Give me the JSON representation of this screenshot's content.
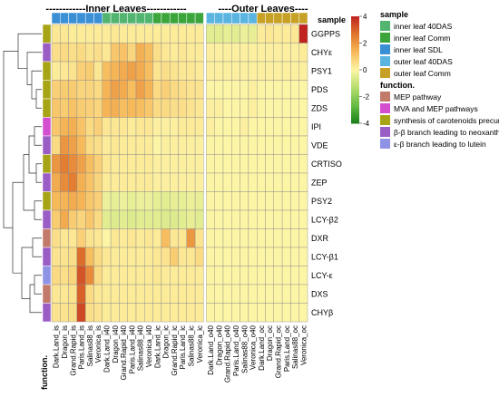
{
  "chart_data": {
    "type": "heatmap",
    "group_labels": [
      "------------Inner Leaves------------",
      "----Outer Leaves----"
    ],
    "samples": [
      "Dark.Land_is",
      "Dragon_is",
      "Grand.Rapid_is",
      "Paris.Land_is",
      "Salinas88_is",
      "Veronica_is",
      "Dark.Land_i40",
      "Dragon_i40",
      "Grand.Rapid_i40",
      "Paris.Land_i40",
      "Salinas88_i40",
      "Veronica_i40",
      "Dark.Land_ic",
      "Dragon_ic",
      "Grand.Rapid_ic",
      "Paris.Land_ic",
      "Salinas88_ic",
      "Veronica_ic",
      "Dark.Land_o40",
      "Dragon_o40",
      "Grand.Rapid_o40",
      "Paris.Land_o40",
      "Salinas88_o40",
      "Veronica_o40",
      "Dark.Land_oc",
      "Dragon_oc",
      "Grand.Rapid_oc",
      "Paris.Land_oc",
      "Salinas88_oc",
      "Veronica_oc"
    ],
    "sample_annotation": [
      "SDL",
      "SDL",
      "SDL",
      "SDL",
      "SDL",
      "SDL",
      "40DAS",
      "40DAS",
      "40DAS",
      "40DAS",
      "40DAS",
      "40DAS",
      "Comm",
      "Comm",
      "Comm",
      "Comm",
      "Comm",
      "Comm",
      "o40DAS",
      "o40DAS",
      "o40DAS",
      "o40DAS",
      "o40DAS",
      "o40DAS",
      "oComm",
      "oComm",
      "oComm",
      "oComm",
      "oComm",
      "oComm"
    ],
    "genes": [
      "GGPPS",
      "CHYε",
      "PSY1",
      "PDS",
      "ZDS",
      "IPI",
      "VDE",
      "CRTISO",
      "ZEP",
      "PSY2",
      "LCY-β2",
      "DXR",
      "LCY-β1",
      "LCY-ε",
      "DXS",
      "CHYβ"
    ],
    "gene_function": [
      "carot",
      "bb",
      "carot",
      "carot",
      "carot",
      "mva",
      "bb",
      "carot",
      "bb",
      "carot",
      "bb",
      "mep",
      "bb",
      "eb",
      "mep",
      "bb"
    ],
    "values": [
      [
        0.3,
        0.3,
        0.2,
        0.2,
        0.2,
        0.2,
        0.2,
        0.3,
        0.2,
        0.2,
        0.2,
        0.2,
        0.2,
        0.2,
        0.2,
        0.2,
        0.2,
        0.2,
        -0.5,
        -0.5,
        -0.4,
        -0.5,
        -0.3,
        -0.4,
        0.2,
        0.3,
        0.2,
        0.2,
        0.3,
        4.0
      ],
      [
        0.5,
        0.6,
        0.5,
        0.6,
        0.4,
        0.5,
        0.3,
        1.0,
        1.1,
        0.7,
        1.5,
        1.2,
        0.5,
        0.3,
        0.2,
        0.3,
        0.2,
        0.2,
        0.1,
        0.1,
        0.1,
        0.1,
        0.1,
        0.1,
        0.1,
        0.1,
        0.1,
        0.1,
        0.1,
        0.2
      ],
      [
        0.2,
        0.3,
        0.4,
        0.8,
        0.9,
        0.3,
        1.2,
        1.4,
        1.6,
        1.8,
        1.6,
        1.2,
        0.4,
        0.5,
        0.4,
        0.3,
        0.3,
        0.2,
        0.1,
        0.1,
        0.1,
        0.1,
        0.1,
        0.1,
        0.1,
        0.1,
        0.1,
        0.1,
        0.1,
        0.1
      ],
      [
        0.8,
        0.9,
        0.9,
        0.7,
        0.7,
        0.6,
        1.4,
        1.8,
        1.6,
        1.2,
        1.8,
        1.4,
        0.6,
        0.8,
        0.6,
        0.5,
        0.4,
        0.4,
        0.0,
        0.0,
        0.0,
        0.0,
        0.0,
        0.1,
        0.0,
        0.0,
        0.0,
        0.0,
        0.0,
        0.0
      ],
      [
        1.0,
        0.9,
        1.1,
        0.9,
        0.8,
        0.7,
        1.4,
        1.5,
        1.2,
        1.3,
        1.2,
        1.0,
        0.6,
        0.6,
        0.5,
        0.5,
        0.4,
        0.3,
        0.1,
        0.1,
        0.0,
        0.0,
        0.0,
        0.1,
        0.0,
        0.0,
        0.0,
        0.0,
        0.0,
        0.0
      ],
      [
        1.0,
        1.4,
        1.5,
        1.1,
        0.6,
        0.8,
        0.3,
        0.3,
        0.3,
        0.2,
        0.3,
        0.3,
        0.1,
        0.1,
        0.1,
        0.2,
        0.2,
        0.2,
        0.1,
        0.0,
        0.0,
        0.0,
        0.1,
        0.0,
        0.0,
        0.0,
        0.0,
        0.0,
        0.0,
        0.0
      ],
      [
        0.6,
        2.0,
        1.8,
        1.3,
        0.6,
        0.5,
        0.2,
        0.3,
        0.2,
        0.2,
        0.2,
        0.2,
        0.0,
        0.1,
        0.1,
        0.1,
        0.1,
        0.1,
        0.0,
        0.0,
        0.0,
        0.0,
        0.0,
        0.0,
        0.0,
        0.0,
        0.0,
        0.0,
        0.0,
        0.0
      ],
      [
        2.0,
        2.5,
        2.2,
        1.8,
        1.2,
        0.8,
        0.3,
        0.2,
        0.2,
        0.2,
        0.2,
        0.2,
        0.1,
        0.1,
        0.1,
        0.1,
        0.1,
        0.1,
        0.0,
        0.0,
        0.0,
        0.0,
        0.0,
        0.0,
        0.0,
        0.0,
        0.0,
        0.0,
        0.0,
        0.0
      ],
      [
        1.6,
        2.2,
        2.5,
        1.5,
        1.1,
        0.7,
        0.2,
        0.2,
        0.2,
        0.2,
        0.2,
        0.2,
        0.1,
        0.1,
        0.1,
        0.1,
        0.1,
        0.1,
        0.0,
        0.0,
        0.0,
        0.0,
        0.0,
        0.0,
        0.0,
        0.0,
        0.0,
        0.0,
        0.0,
        0.0
      ],
      [
        1.3,
        1.4,
        1.6,
        1.4,
        1.0,
        0.8,
        -0.3,
        -0.4,
        -0.3,
        -0.4,
        -0.3,
        -0.3,
        -0.4,
        -0.5,
        -0.4,
        -0.4,
        -0.3,
        -0.4,
        0.0,
        0.0,
        0.0,
        0.0,
        0.0,
        0.0,
        0.0,
        0.0,
        0.0,
        0.0,
        0.0,
        0.0
      ],
      [
        0.9,
        1.6,
        0.9,
        0.7,
        1.0,
        0.6,
        -0.5,
        -0.6,
        -0.5,
        -0.6,
        -0.5,
        -0.5,
        -0.5,
        -0.6,
        -0.6,
        -0.5,
        -0.4,
        -0.5,
        0.0,
        0.0,
        0.0,
        0.0,
        0.0,
        0.0,
        0.0,
        0.0,
        0.0,
        0.0,
        0.0,
        0.0
      ],
      [
        0.5,
        0.3,
        0.3,
        0.8,
        0.4,
        0.3,
        0.0,
        0.3,
        0.2,
        0.3,
        0.2,
        0.3,
        0.2,
        1.2,
        0.3,
        0.3,
        2.0,
        0.4,
        0.0,
        0.0,
        0.0,
        0.0,
        0.0,
        0.0,
        0.0,
        0.0,
        0.0,
        0.0,
        0.0,
        0.0
      ],
      [
        0.4,
        0.4,
        0.5,
        2.8,
        1.2,
        0.6,
        0.3,
        0.2,
        0.2,
        0.2,
        0.2,
        0.2,
        0.3,
        0.4,
        0.9,
        0.3,
        0.3,
        0.6,
        0.0,
        0.0,
        0.0,
        0.0,
        0.0,
        0.0,
        0.0,
        0.0,
        0.0,
        0.0,
        0.0,
        0.0
      ],
      [
        0.6,
        0.5,
        0.7,
        3.2,
        2.2,
        0.6,
        0.2,
        0.2,
        0.2,
        0.2,
        0.2,
        0.2,
        0.3,
        0.2,
        0.2,
        0.2,
        0.2,
        0.2,
        0.0,
        0.0,
        0.0,
        0.0,
        0.0,
        0.0,
        0.0,
        0.0,
        0.0,
        0.0,
        0.0,
        0.0
      ],
      [
        0.3,
        0.3,
        0.4,
        3.0,
        0.6,
        0.3,
        0.2,
        0.2,
        0.2,
        0.2,
        0.2,
        0.2,
        0.2,
        0.2,
        0.2,
        0.2,
        0.2,
        0.2,
        0.0,
        0.0,
        0.0,
        0.0,
        0.0,
        0.0,
        0.0,
        0.0,
        0.0,
        0.0,
        0.0,
        0.0
      ],
      [
        0.4,
        0.4,
        0.5,
        3.4,
        0.5,
        0.4,
        0.2,
        0.2,
        0.2,
        0.2,
        0.2,
        0.2,
        0.2,
        0.2,
        0.2,
        0.2,
        0.2,
        0.2,
        0.0,
        0.0,
        0.0,
        0.0,
        0.0,
        0.0,
        0.0,
        0.0,
        0.0,
        0.0,
        0.0,
        0.0
      ]
    ],
    "color_scale": {
      "min": -4,
      "max": 4,
      "ticks": [
        4,
        2,
        0,
        -2,
        -4
      ],
      "colors": [
        "#1a7f1a",
        "#66bb44",
        "#b6dd6f",
        "#fdf5a6",
        "#f6b858",
        "#e0752c",
        "#c0231f"
      ]
    },
    "col_bar_label": "sample",
    "row_bar_label": "function.",
    "legend": {
      "sample": {
        "title": "sample",
        "entries": [
          {
            "key": "40DAS",
            "label": "inner leaf 40DAS",
            "color": "#52b56f"
          },
          {
            "key": "Comm",
            "label": "inner leaf Comm",
            "color": "#3ba53b"
          },
          {
            "key": "SDL",
            "label": "inner leaf SDL",
            "color": "#3a8fd5"
          },
          {
            "key": "o40DAS",
            "label": "outer leaf 40DAS",
            "color": "#5ab4e0"
          },
          {
            "key": "oComm",
            "label": "outer leaf Comm",
            "color": "#c7a126"
          }
        ]
      },
      "function": {
        "title": "function.",
        "entries": [
          {
            "key": "mep",
            "label": "MEP pathway",
            "color": "#c27b6b"
          },
          {
            "key": "mva",
            "label": "MVA and MEP pathways",
            "color": "#d44fd0"
          },
          {
            "key": "carot",
            "label": "synthesis of carotenoids precursor",
            "color": "#a7a515"
          },
          {
            "key": "bb",
            "label": "β-β branch leading to neoxanthin",
            "color": "#9a5dc6"
          },
          {
            "key": "eb",
            "label": "ε-β branch leading to lutein",
            "color": "#8f93e6"
          }
        ]
      }
    }
  }
}
